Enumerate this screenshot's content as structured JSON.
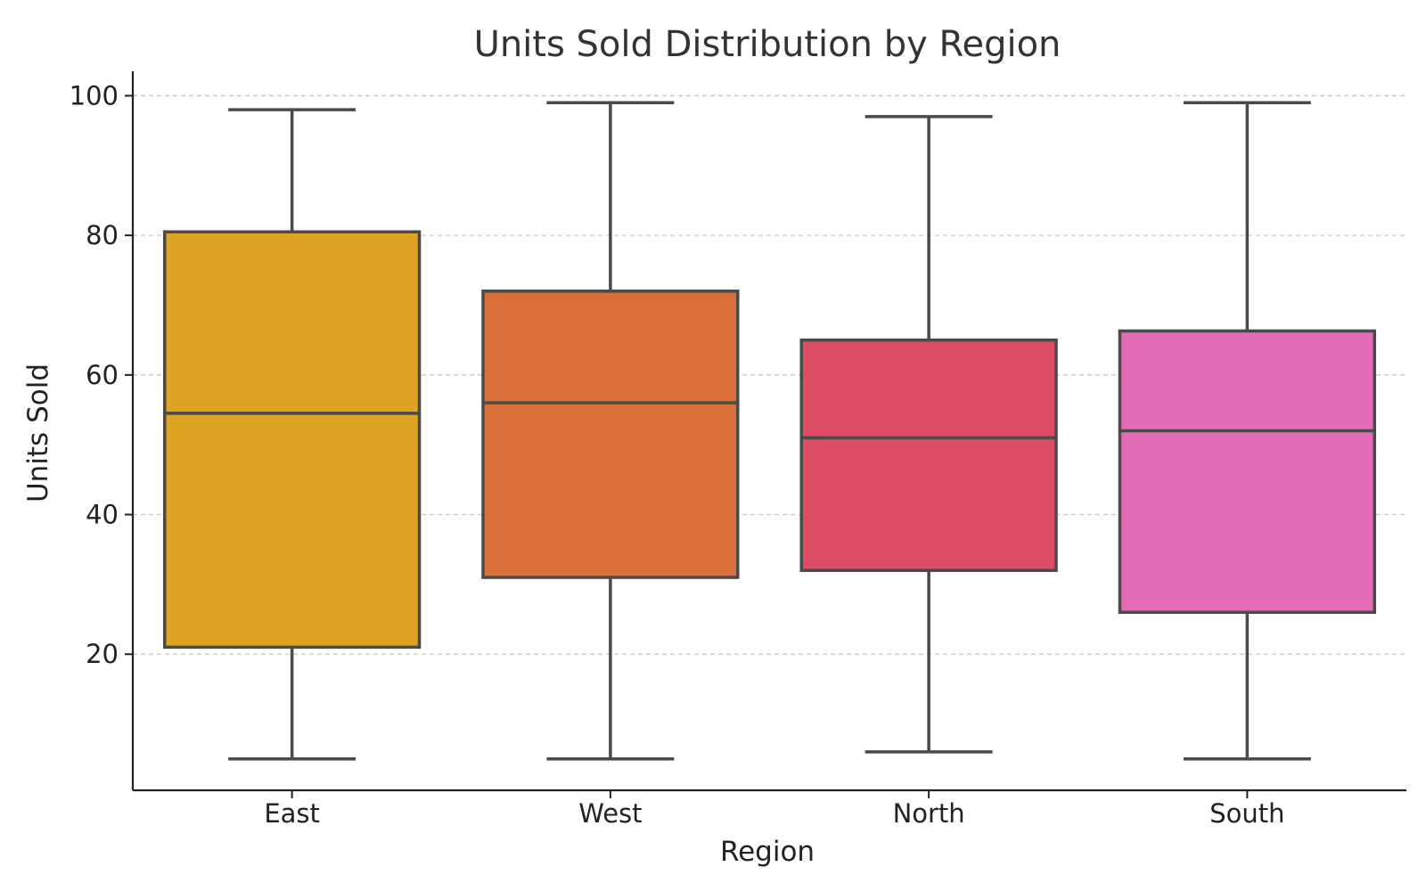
{
  "chart_data": {
    "type": "box",
    "title": "Units Sold Distribution by Region",
    "xlabel": "Region",
    "ylabel": "Units Sold",
    "ylim": [
      0.5,
      103.5
    ],
    "yticks": [
      20,
      40,
      60,
      80,
      100
    ],
    "grid": "y-dashed",
    "categories": [
      "East",
      "West",
      "North",
      "South"
    ],
    "colors": [
      "#dfa322",
      "#d9703a",
      "#dd4b65",
      "#e46cb6"
    ],
    "boxes": [
      {
        "category": "East",
        "min": 5,
        "q1": 21,
        "median": 54.5,
        "q3": 80.5,
        "max": 98
      },
      {
        "category": "West",
        "min": 5,
        "q1": 31,
        "median": 56,
        "q3": 72,
        "max": 99
      },
      {
        "category": "North",
        "min": 6,
        "q1": 32,
        "median": 51,
        "q3": 65,
        "max": 97
      },
      {
        "category": "South",
        "min": 5,
        "q1": 26,
        "median": 52,
        "q3": 66.3,
        "max": 99
      }
    ]
  }
}
